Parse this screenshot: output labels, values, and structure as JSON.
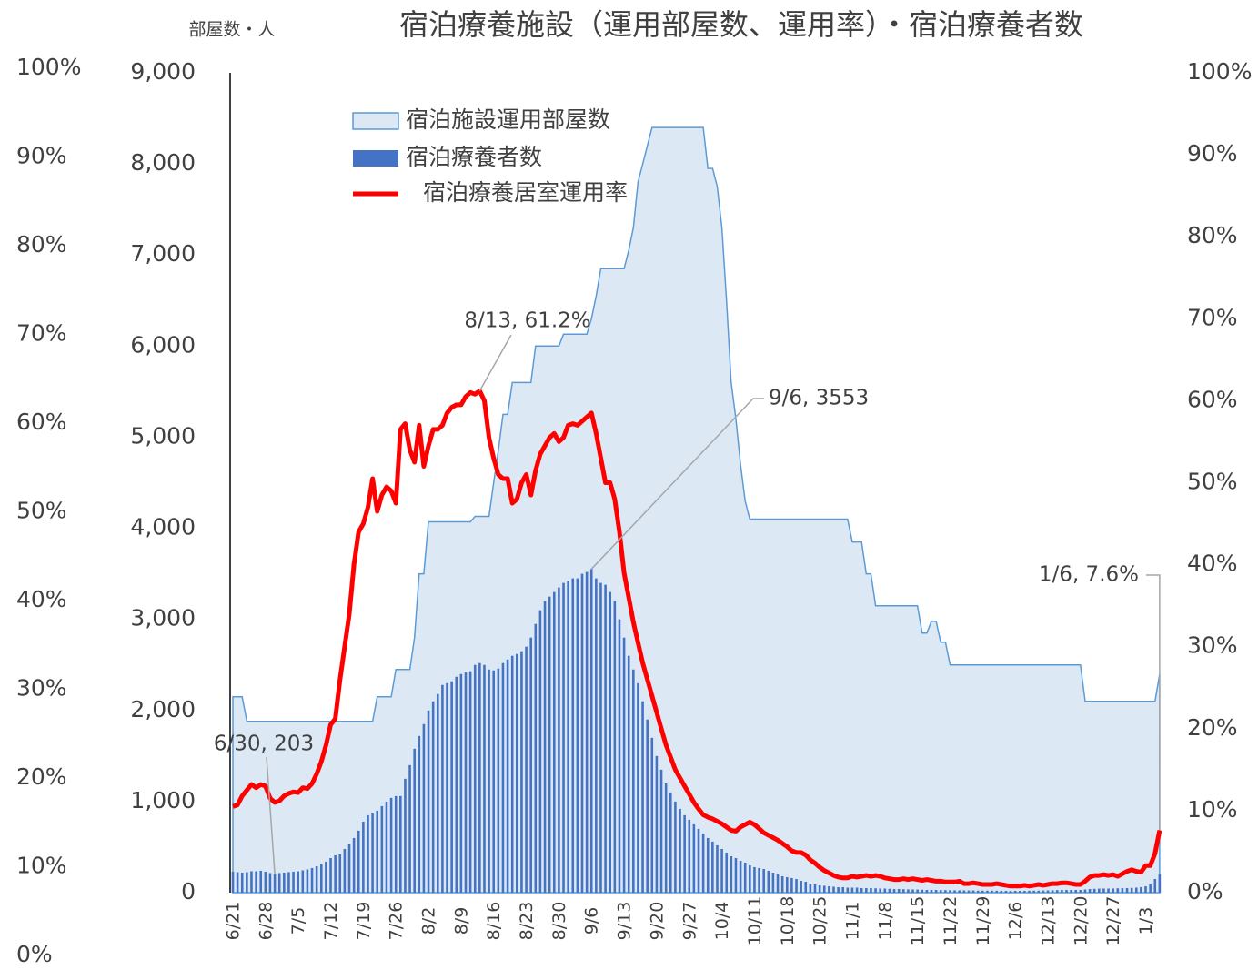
{
  "chart_data": {
    "type": "combo",
    "title": "宿泊療養施設（運用部屋数、運用率）・宿泊療養者数",
    "y_label": "部屋数・人",
    "categories": [
      "6/21",
      null,
      null,
      null,
      null,
      null,
      null,
      "6/28",
      null,
      null,
      null,
      null,
      null,
      null,
      "7/5",
      null,
      null,
      null,
      null,
      null,
      null,
      "7/12",
      null,
      null,
      null,
      null,
      null,
      null,
      "7/19",
      null,
      null,
      null,
      null,
      null,
      null,
      "7/26",
      null,
      null,
      null,
      null,
      null,
      null,
      "8/2",
      null,
      null,
      null,
      null,
      null,
      null,
      "8/9",
      null,
      null,
      null,
      null,
      null,
      null,
      "8/16",
      null,
      null,
      null,
      null,
      null,
      null,
      "8/23",
      null,
      null,
      null,
      null,
      null,
      null,
      "8/30",
      null,
      null,
      null,
      null,
      null,
      null,
      "9/6",
      null,
      null,
      null,
      null,
      null,
      null,
      "9/13",
      null,
      null,
      null,
      null,
      null,
      null,
      "9/20",
      null,
      null,
      null,
      null,
      null,
      null,
      "9/27",
      null,
      null,
      null,
      null,
      null,
      null,
      "10/4",
      null,
      null,
      null,
      null,
      null,
      null,
      "10/11",
      null,
      null,
      null,
      null,
      null,
      null,
      "10/18",
      null,
      null,
      null,
      null,
      null,
      null,
      "10/25",
      null,
      null,
      null,
      null,
      null,
      null,
      "11/1",
      null,
      null,
      null,
      null,
      null,
      null,
      "11/8",
      null,
      null,
      null,
      null,
      null,
      null,
      "11/15",
      null,
      null,
      null,
      null,
      null,
      null,
      "11/22",
      null,
      null,
      null,
      null,
      null,
      null,
      "11/29",
      null,
      null,
      null,
      null,
      null,
      null,
      "12/6",
      null,
      null,
      null,
      null,
      null,
      null,
      "12/13",
      null,
      null,
      null,
      null,
      null,
      null,
      "12/20",
      null,
      null,
      null,
      null,
      null,
      null,
      "12/27",
      null,
      null,
      null,
      null,
      null,
      null,
      "1/3",
      null,
      null,
      null
    ],
    "series": [
      {
        "name": "宿泊施設運用部屋数",
        "type": "area",
        "color": "#dde8f5",
        "stroke": "#5b9bd5",
        "values": [
          2150,
          2150,
          2150,
          1880,
          1880,
          1880,
          1880,
          1880,
          1880,
          1880,
          1880,
          1880,
          1880,
          1880,
          1880,
          1880,
          1880,
          1880,
          1880,
          1880,
          1880,
          1880,
          1880,
          1880,
          1880,
          1880,
          1880,
          1880,
          1880,
          1880,
          1880,
          2150,
          2150,
          2150,
          2150,
          2450,
          2450,
          2450,
          2450,
          2800,
          3500,
          3500,
          4070,
          4070,
          4070,
          4070,
          4070,
          4070,
          4070,
          4070,
          4070,
          4070,
          4130,
          4130,
          4130,
          4130,
          4500,
          4850,
          5250,
          5250,
          5600,
          5600,
          5600,
          5600,
          5600,
          6000,
          6000,
          6000,
          6000,
          6000,
          6000,
          6130,
          6130,
          6130,
          6130,
          6130,
          6130,
          6300,
          6550,
          6850,
          6850,
          6850,
          6850,
          6850,
          6850,
          7050,
          7300,
          7800,
          8000,
          8200,
          8400,
          8400,
          8400,
          8400,
          8400,
          8400,
          8400,
          8400,
          8400,
          8400,
          8400,
          8400,
          7950,
          7950,
          7750,
          7300,
          6500,
          5600,
          5200,
          4700,
          4300,
          4100,
          4100,
          4100,
          4100,
          4100,
          4100,
          4100,
          4100,
          4100,
          4100,
          4100,
          4100,
          4100,
          4100,
          4100,
          4100,
          4100,
          4100,
          4100,
          4100,
          4100,
          4100,
          3850,
          3850,
          3850,
          3500,
          3500,
          3150,
          3150,
          3150,
          3150,
          3150,
          3150,
          3150,
          3150,
          3150,
          3150,
          2850,
          2850,
          2980,
          2980,
          2750,
          2750,
          2500,
          2500,
          2500,
          2500,
          2500,
          2500,
          2500,
          2500,
          2500,
          2500,
          2500,
          2500,
          2500,
          2500,
          2500,
          2500,
          2500,
          2500,
          2500,
          2500,
          2500,
          2500,
          2500,
          2500,
          2500,
          2500,
          2500,
          2500,
          2500,
          2100,
          2100,
          2100,
          2100,
          2100,
          2100,
          2100,
          2100,
          2100,
          2100,
          2100,
          2100,
          2100,
          2100,
          2100,
          2100,
          2400
        ]
      },
      {
        "name": "宿泊療養者数",
        "type": "bar",
        "color": "#4472c4",
        "values": [
          230,
          225,
          220,
          225,
          235,
          235,
          240,
          230,
          215,
          203,
          215,
          220,
          225,
          230,
          235,
          245,
          255,
          270,
          290,
          310,
          340,
          380,
          410,
          420,
          480,
          530,
          600,
          680,
          780,
          850,
          870,
          900,
          950,
          1000,
          1040,
          1060,
          1060,
          1250,
          1400,
          1580,
          1720,
          1850,
          2000,
          2100,
          2180,
          2280,
          2300,
          2320,
          2370,
          2400,
          2420,
          2430,
          2500,
          2520,
          2500,
          2450,
          2440,
          2460,
          2520,
          2560,
          2600,
          2620,
          2650,
          2700,
          2800,
          2950,
          3100,
          3200,
          3250,
          3300,
          3350,
          3400,
          3420,
          3450,
          3450,
          3500,
          3520,
          3553,
          3450,
          3400,
          3380,
          3300,
          3200,
          3000,
          2800,
          2600,
          2450,
          2300,
          2100,
          1900,
          1700,
          1500,
          1350,
          1200,
          1100,
          1000,
          920,
          850,
          800,
          750,
          700,
          650,
          600,
          560,
          520,
          480,
          440,
          400,
          380,
          350,
          330,
          300,
          280,
          270,
          260,
          240,
          220,
          200,
          180,
          170,
          160,
          150,
          130,
          120,
          100,
          90,
          80,
          75,
          70,
          65,
          60,
          60,
          55,
          55,
          55,
          50,
          50,
          50,
          48,
          45,
          45,
          42,
          40,
          40,
          38,
          36,
          35,
          34,
          32,
          30,
          30,
          30,
          28,
          28,
          27,
          26,
          25,
          25,
          24,
          24,
          22,
          22,
          22,
          22,
          21,
          20,
          20,
          20,
          20,
          20,
          20,
          21,
          22,
          22,
          24,
          25,
          26,
          28,
          30,
          30,
          30,
          30,
          30,
          35,
          40,
          42,
          44,
          45,
          45,
          46,
          48,
          50,
          50,
          52,
          55,
          60,
          70,
          90,
          150,
          203
        ]
      },
      {
        "name": "宿泊療養居室運用率",
        "type": "line",
        "axis": "y2",
        "color": "#ff0000",
        "values": [
          10.5,
          10.7,
          11.8,
          12.5,
          13.2,
          12.8,
          13.2,
          13,
          11.5,
          11,
          11.2,
          11.8,
          12.1,
          12.3,
          12.2,
          12.8,
          12.7,
          13.3,
          14.5,
          16,
          18,
          20.5,
          21.2,
          26,
          30,
          34,
          40,
          44,
          45,
          47,
          50.5,
          46.5,
          48.5,
          49.5,
          49,
          47.5,
          56.5,
          57.2,
          54,
          52.5,
          57,
          52,
          54.5,
          56.5,
          56.5,
          57,
          58.5,
          59.2,
          59.5,
          59.5,
          60.5,
          61,
          60.8,
          61.2,
          60,
          55.5,
          53,
          51,
          50.5,
          50.5,
          47.5,
          48,
          50,
          51,
          48.5,
          51.5,
          53.5,
          54.5,
          55.5,
          56,
          55,
          55.5,
          57,
          57.2,
          57,
          57.5,
          58,
          58.5,
          56,
          53,
          50,
          50,
          48,
          44,
          39,
          36,
          33,
          30.5,
          28,
          26,
          24,
          22,
          20,
          18,
          16.5,
          15,
          14,
          13,
          12,
          11,
          10.2,
          9.5,
          9.2,
          9,
          8.7,
          8.4,
          8,
          7.6,
          7.5,
          8,
          8.3,
          8.6,
          8.3,
          7.8,
          7.3,
          7,
          6.7,
          6.4,
          6,
          5.6,
          5.1,
          4.9,
          4.9,
          4.6,
          4,
          3.6,
          3.1,
          2.7,
          2.4,
          2.1,
          1.9,
          1.8,
          1.8,
          2,
          1.9,
          2,
          2.1,
          2,
          2.1,
          2,
          1.8,
          1.7,
          1.6,
          1.6,
          1.7,
          1.6,
          1.7,
          1.6,
          1.5,
          1.6,
          1.5,
          1.4,
          1.4,
          1.3,
          1.3,
          1.3,
          1.4,
          1.1,
          1.1,
          1.2,
          1.1,
          1.0,
          1.0,
          1.0,
          1.1,
          1.0,
          0.9,
          0.8,
          0.8,
          0.8,
          0.9,
          0.8,
          0.9,
          1.0,
          0.9,
          1.0,
          1.1,
          1.1,
          1.2,
          1.2,
          1.1,
          1.0,
          1.0,
          1.4,
          1.9,
          2.1,
          2.1,
          2.2,
          2.1,
          2.2,
          2.0,
          2.3,
          2.6,
          2.8,
          2.6,
          2.5,
          3.3,
          3.3,
          4.8,
          7.6
        ]
      }
    ],
    "ylim": [
      0,
      9000
    ],
    "yticks": [
      0,
      {
        "value": 1000,
        "label": "1,000"
      },
      {
        "value": 2000,
        "label": "2,000"
      },
      {
        "value": 3000,
        "label": "3,000"
      },
      {
        "value": 4000,
        "label": "4,000"
      },
      {
        "value": 5000,
        "label": "5,000"
      },
      {
        "value": 6000,
        "label": "6,000"
      },
      {
        "value": 7000,
        "label": "7,000"
      },
      {
        "value": 8000,
        "label": "8,000"
      },
      {
        "value": 9000,
        "label": "9,000"
      }
    ],
    "y2lim": [
      0,
      100
    ],
    "y2ticks": [
      {
        "value": 0,
        "label": "0%"
      },
      {
        "value": 10,
        "label": "10%"
      },
      {
        "value": 20,
        "label": "20%"
      },
      {
        "value": 30,
        "label": "30%"
      },
      {
        "value": 40,
        "label": "40%"
      },
      {
        "value": 50,
        "label": "50%"
      },
      {
        "value": 60,
        "label": "60%"
      },
      {
        "value": 70,
        "label": "70%"
      },
      {
        "value": 80,
        "label": "80%"
      },
      {
        "value": 90,
        "label": "90%"
      },
      {
        "value": 100,
        "label": "100%"
      }
    ],
    "y3lim": [
      0,
      100
    ],
    "y3ticks": [
      {
        "value": 0,
        "label": "0%"
      },
      {
        "value": 10,
        "label": "10%"
      },
      {
        "value": 20,
        "label": "20%"
      },
      {
        "value": 30,
        "label": "30%"
      },
      {
        "value": 40,
        "label": "40%"
      },
      {
        "value": 50,
        "label": "50%"
      },
      {
        "value": 60,
        "label": "60%"
      },
      {
        "value": 70,
        "label": "70%"
      },
      {
        "value": 80,
        "label": "80%"
      },
      {
        "value": 90,
        "label": "90%"
      },
      {
        "value": 100,
        "label": "100%"
      }
    ],
    "annotations": [
      "6/30, 203",
      "8/13, 61.2%",
      "9/6, 3553",
      "1/6, 7.6%"
    ]
  }
}
